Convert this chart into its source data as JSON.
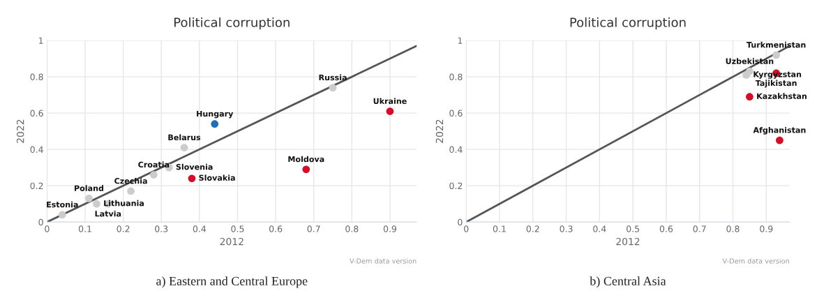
{
  "chart_data": [
    {
      "type": "scatter",
      "title": "Political corruption",
      "xlabel": "2012",
      "ylabel": "2022",
      "xlim": [
        0,
        0.97
      ],
      "ylim": [
        0,
        1
      ],
      "xticks": [
        0,
        0.1,
        0.2,
        0.3,
        0.4,
        0.5,
        0.6,
        0.7,
        0.8,
        0.9
      ],
      "yticks": [
        0,
        0.2,
        0.4,
        0.6,
        0.8,
        1
      ],
      "grid": true,
      "legend": false,
      "series": [
        {
          "type": "line",
          "color": "#555555",
          "x": [
            0,
            0.97
          ],
          "values": [
            0,
            0.97
          ]
        },
        {
          "type": "scatter",
          "marker": "circle",
          "x": [
            0.04,
            0.11,
            0.13,
            0.16,
            0.22,
            0.28,
            0.32,
            0.36,
            0.38,
            0.44,
            0.68,
            0.75,
            0.9
          ],
          "values": [
            0.04,
            0.13,
            0.1,
            0.1,
            0.17,
            0.26,
            0.3,
            0.41,
            0.24,
            0.54,
            0.29,
            0.74,
            0.61
          ],
          "colors": [
            "#cccccc",
            "#cccccc",
            "#cccccc",
            "#cccccc",
            "#cccccc",
            "#cccccc",
            "#cccccc",
            "#cccccc",
            "#d0102b",
            "#1f6fb2",
            "#d0102b",
            "#cccccc",
            "#d0102b"
          ]
        }
      ],
      "annotations": [
        {
          "text": "Estonia",
          "x": 0.04,
          "y": 0.04
        },
        {
          "text": "Poland",
          "x": 0.11,
          "y": 0.13
        },
        {
          "text": "Lithuania",
          "x": 0.13,
          "y": 0.1
        },
        {
          "text": "Latvia",
          "x": 0.16,
          "y": 0.1
        },
        {
          "text": "Czechia",
          "x": 0.22,
          "y": 0.17
        },
        {
          "text": "Croatia",
          "x": 0.28,
          "y": 0.26
        },
        {
          "text": "Slovenia",
          "x": 0.32,
          "y": 0.3
        },
        {
          "text": "Belarus",
          "x": 0.36,
          "y": 0.41
        },
        {
          "text": "Slovakia",
          "x": 0.38,
          "y": 0.24
        },
        {
          "text": "Hungary",
          "x": 0.44,
          "y": 0.54
        },
        {
          "text": "Moldova",
          "x": 0.68,
          "y": 0.29
        },
        {
          "text": "Russia",
          "x": 0.75,
          "y": 0.74
        },
        {
          "text": "Ukraine",
          "x": 0.9,
          "y": 0.61
        },
        "V-Dem data version",
        "a) Eastern and Central Europe"
      ]
    },
    {
      "type": "scatter",
      "title": "Political corruption",
      "xlabel": "2012",
      "ylabel": "2022",
      "xlim": [
        0,
        0.97
      ],
      "ylim": [
        0,
        1
      ],
      "xticks": [
        0,
        0.1,
        0.2,
        0.3,
        0.4,
        0.5,
        0.6,
        0.7,
        0.8,
        0.9
      ],
      "yticks": [
        0,
        0.2,
        0.4,
        0.6,
        0.8,
        1
      ],
      "grid": true,
      "legend": false,
      "series": [
        {
          "type": "line",
          "color": "#555555",
          "x": [
            0,
            0.97
          ],
          "values": [
            0,
            0.97
          ]
        },
        {
          "type": "scatter",
          "marker": "circle",
          "x": [
            0.93,
            0.85,
            0.84,
            0.93,
            0.85,
            0.94
          ],
          "values": [
            0.92,
            0.83,
            0.81,
            0.82,
            0.69,
            0.45
          ],
          "colors": [
            "#cccccc",
            "#cccccc",
            "#cccccc",
            "#d0102b",
            "#d0102b",
            "#d0102b"
          ]
        }
      ],
      "annotations": [
        {
          "text": "Turkmenistan",
          "x": 0.93,
          "y": 0.92
        },
        {
          "text": "Uzbekistan",
          "x": 0.85,
          "y": 0.83
        },
        {
          "text": "Kyrgyzstan",
          "x": 0.84,
          "y": 0.81
        },
        {
          "text": "Tajikistan",
          "x": 0.93,
          "y": 0.82
        },
        {
          "text": "Kazakhstan",
          "x": 0.85,
          "y": 0.69
        },
        {
          "text": "Afghanistan",
          "x": 0.94,
          "y": 0.45
        },
        "V-Dem data version",
        "b) Central Asia"
      ]
    }
  ]
}
